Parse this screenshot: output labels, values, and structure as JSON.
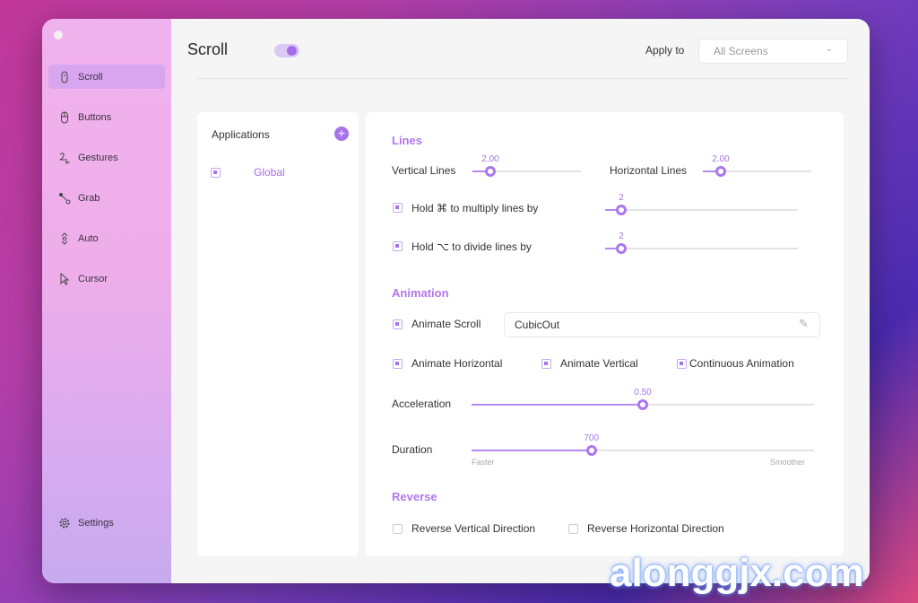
{
  "sidebar": {
    "items": [
      {
        "label": "Scroll",
        "icon": "mouse-scroll-icon",
        "active": true
      },
      {
        "label": "Buttons",
        "icon": "mouse-icon"
      },
      {
        "label": "Gestures",
        "icon": "gesture-icon"
      },
      {
        "label": "Grab",
        "icon": "grab-icon"
      },
      {
        "label": "Auto",
        "icon": "auto-scroll-icon"
      },
      {
        "label": "Cursor",
        "icon": "cursor-icon"
      }
    ],
    "settings": "Settings"
  },
  "header": {
    "title": "Scroll",
    "enabled": true,
    "apply_to_label": "Apply to",
    "apply_to_value": "All Screens"
  },
  "applications": {
    "title": "Applications",
    "items": [
      {
        "name": "Global",
        "checked": true
      }
    ]
  },
  "lines": {
    "title": "Lines",
    "vertical_label": "Vertical Lines",
    "vertical_value": "2.00",
    "horizontal_label": "Horizontal Lines",
    "horizontal_value": "2.00",
    "multiply_label": "Hold ⌘ to multiply lines by",
    "multiply_value": "2",
    "divide_label": "Hold ⌥ to divide lines by",
    "divide_value": "2"
  },
  "animation": {
    "title": "Animation",
    "animate_scroll": "Animate Scroll",
    "curve": "CubicOut",
    "animate_horizontal": "Animate Horizontal",
    "animate_vertical": "Animate Vertical",
    "continuous": "Continuous Animation",
    "acceleration_label": "Acceleration",
    "acceleration_value": "0.50",
    "acceleration_fraction": 0.5,
    "duration_label": "Duration",
    "duration_value": "700",
    "duration_fraction": 0.35,
    "faster": "Faster",
    "smoother": "Smoother"
  },
  "reverse": {
    "title": "Reverse",
    "vertical": "Reverse Vertical Direction",
    "horizontal": "Reverse Horizontal Direction"
  },
  "watermark": "alonggjx.com",
  "colors": {
    "accent": "#a874ea"
  }
}
